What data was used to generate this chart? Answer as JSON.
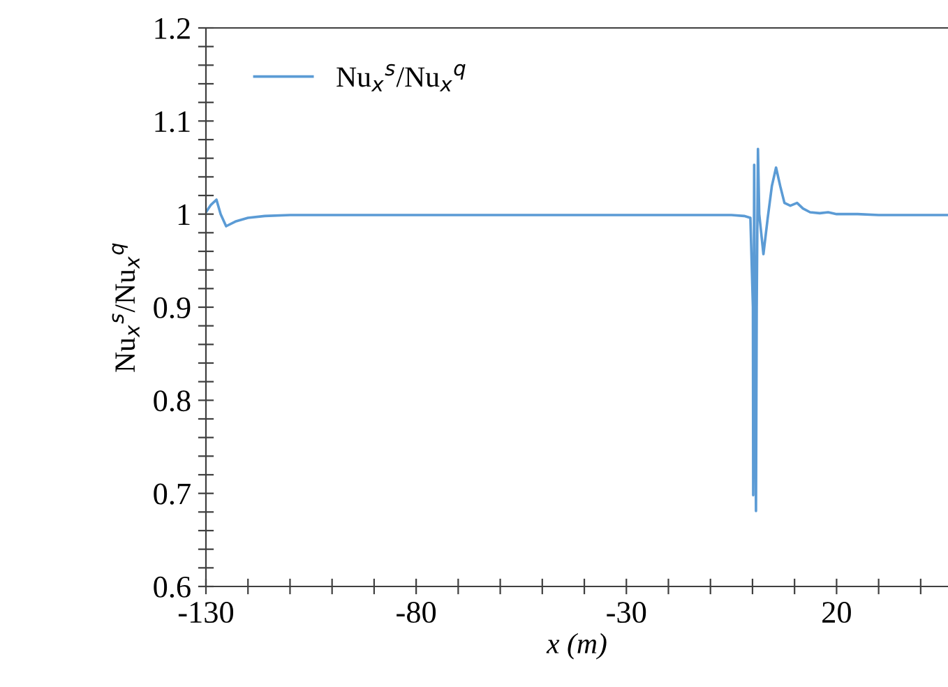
{
  "chart_data": {
    "type": "line",
    "xlabel": "x (m)",
    "ylabel": "Nu$_{x}$$^{s}$/Nu$_{x}$$^{q}$",
    "xlim": [
      -130,
      46.5
    ],
    "ylim": [
      0.6,
      1.2
    ],
    "xticks": [
      -130,
      {
        "value": -120,
        "label": null
      },
      {
        "value": -110,
        "label": null
      },
      {
        "value": -100,
        "label": null
      },
      {
        "value": -90,
        "label": null
      },
      -80,
      {
        "value": -70,
        "label": null
      },
      {
        "value": -60,
        "label": null
      },
      {
        "value": -50,
        "label": null
      },
      {
        "value": -40,
        "label": null
      },
      -30,
      {
        "value": -20,
        "label": null
      },
      {
        "value": -10,
        "label": null
      },
      {
        "value": 0,
        "label": null
      },
      {
        "value": 10,
        "label": null
      },
      20,
      {
        "value": 30,
        "label": null
      },
      {
        "value": 40,
        "label": null
      }
    ],
    "yticks": [
      0.6,
      {
        "value": 0.62,
        "label": null
      },
      {
        "value": 0.64,
        "label": null
      },
      {
        "value": 0.66,
        "label": null
      },
      {
        "value": 0.68,
        "label": null
      },
      0.7,
      {
        "value": 0.72,
        "label": null
      },
      {
        "value": 0.74,
        "label": null
      },
      {
        "value": 0.76,
        "label": null
      },
      {
        "value": 0.78,
        "label": null
      },
      0.8,
      {
        "value": 0.82,
        "label": null
      },
      {
        "value": 0.84,
        "label": null
      },
      {
        "value": 0.86,
        "label": null
      },
      {
        "value": 0.88,
        "label": null
      },
      0.9,
      {
        "value": 0.92,
        "label": null
      },
      {
        "value": 0.94,
        "label": null
      },
      {
        "value": 0.96,
        "label": null
      },
      {
        "value": 0.98,
        "label": null
      },
      1,
      {
        "value": 1.02,
        "label": null
      },
      {
        "value": 1.04,
        "label": null
      },
      {
        "value": 1.06,
        "label": null
      },
      {
        "value": 1.08,
        "label": null
      },
      1.1,
      {
        "value": 1.12,
        "label": null
      },
      {
        "value": 1.14,
        "label": null
      },
      {
        "value": 1.16,
        "label": null
      },
      {
        "value": 1.18,
        "label": null
      },
      1.2
    ],
    "grid": false,
    "legend": "top left",
    "series": [
      {
        "name": "Nu$_{x}$$^{s}$/Nu$_{x}$$^{q}$",
        "color": "#5b9bd5",
        "x": [
          -130,
          -128.8,
          -127.5,
          -126.5,
          -125.2,
          -123,
          -120,
          -116,
          -110,
          -100,
          -80,
          -60,
          -40,
          -20,
          -5,
          -2,
          -0.5,
          0.1,
          0.17,
          0.4,
          0.55,
          0.83,
          1.0,
          1.3,
          1.6,
          2.6,
          3.6,
          4.6,
          5.6,
          6.6,
          7.6,
          9.0,
          10.6,
          12.0,
          13.7,
          16.0,
          18.0,
          20,
          25,
          30,
          35,
          46.5
        ],
        "values": [
          1.002,
          1.01,
          1.0155,
          1.0,
          0.987,
          0.992,
          0.996,
          0.998,
          0.999,
          0.999,
          0.999,
          0.999,
          0.999,
          0.999,
          0.999,
          0.998,
          0.996,
          0.9,
          0.698,
          1.053,
          0.9,
          0.681,
          0.9,
          1.07,
          1.0,
          0.957,
          0.995,
          1.03,
          1.05,
          1.03,
          1.012,
          1.009,
          1.012,
          1.006,
          1.002,
          1.001,
          1.002,
          1.0,
          1.0,
          0.999,
          0.999,
          0.999
        ]
      }
    ]
  }
}
